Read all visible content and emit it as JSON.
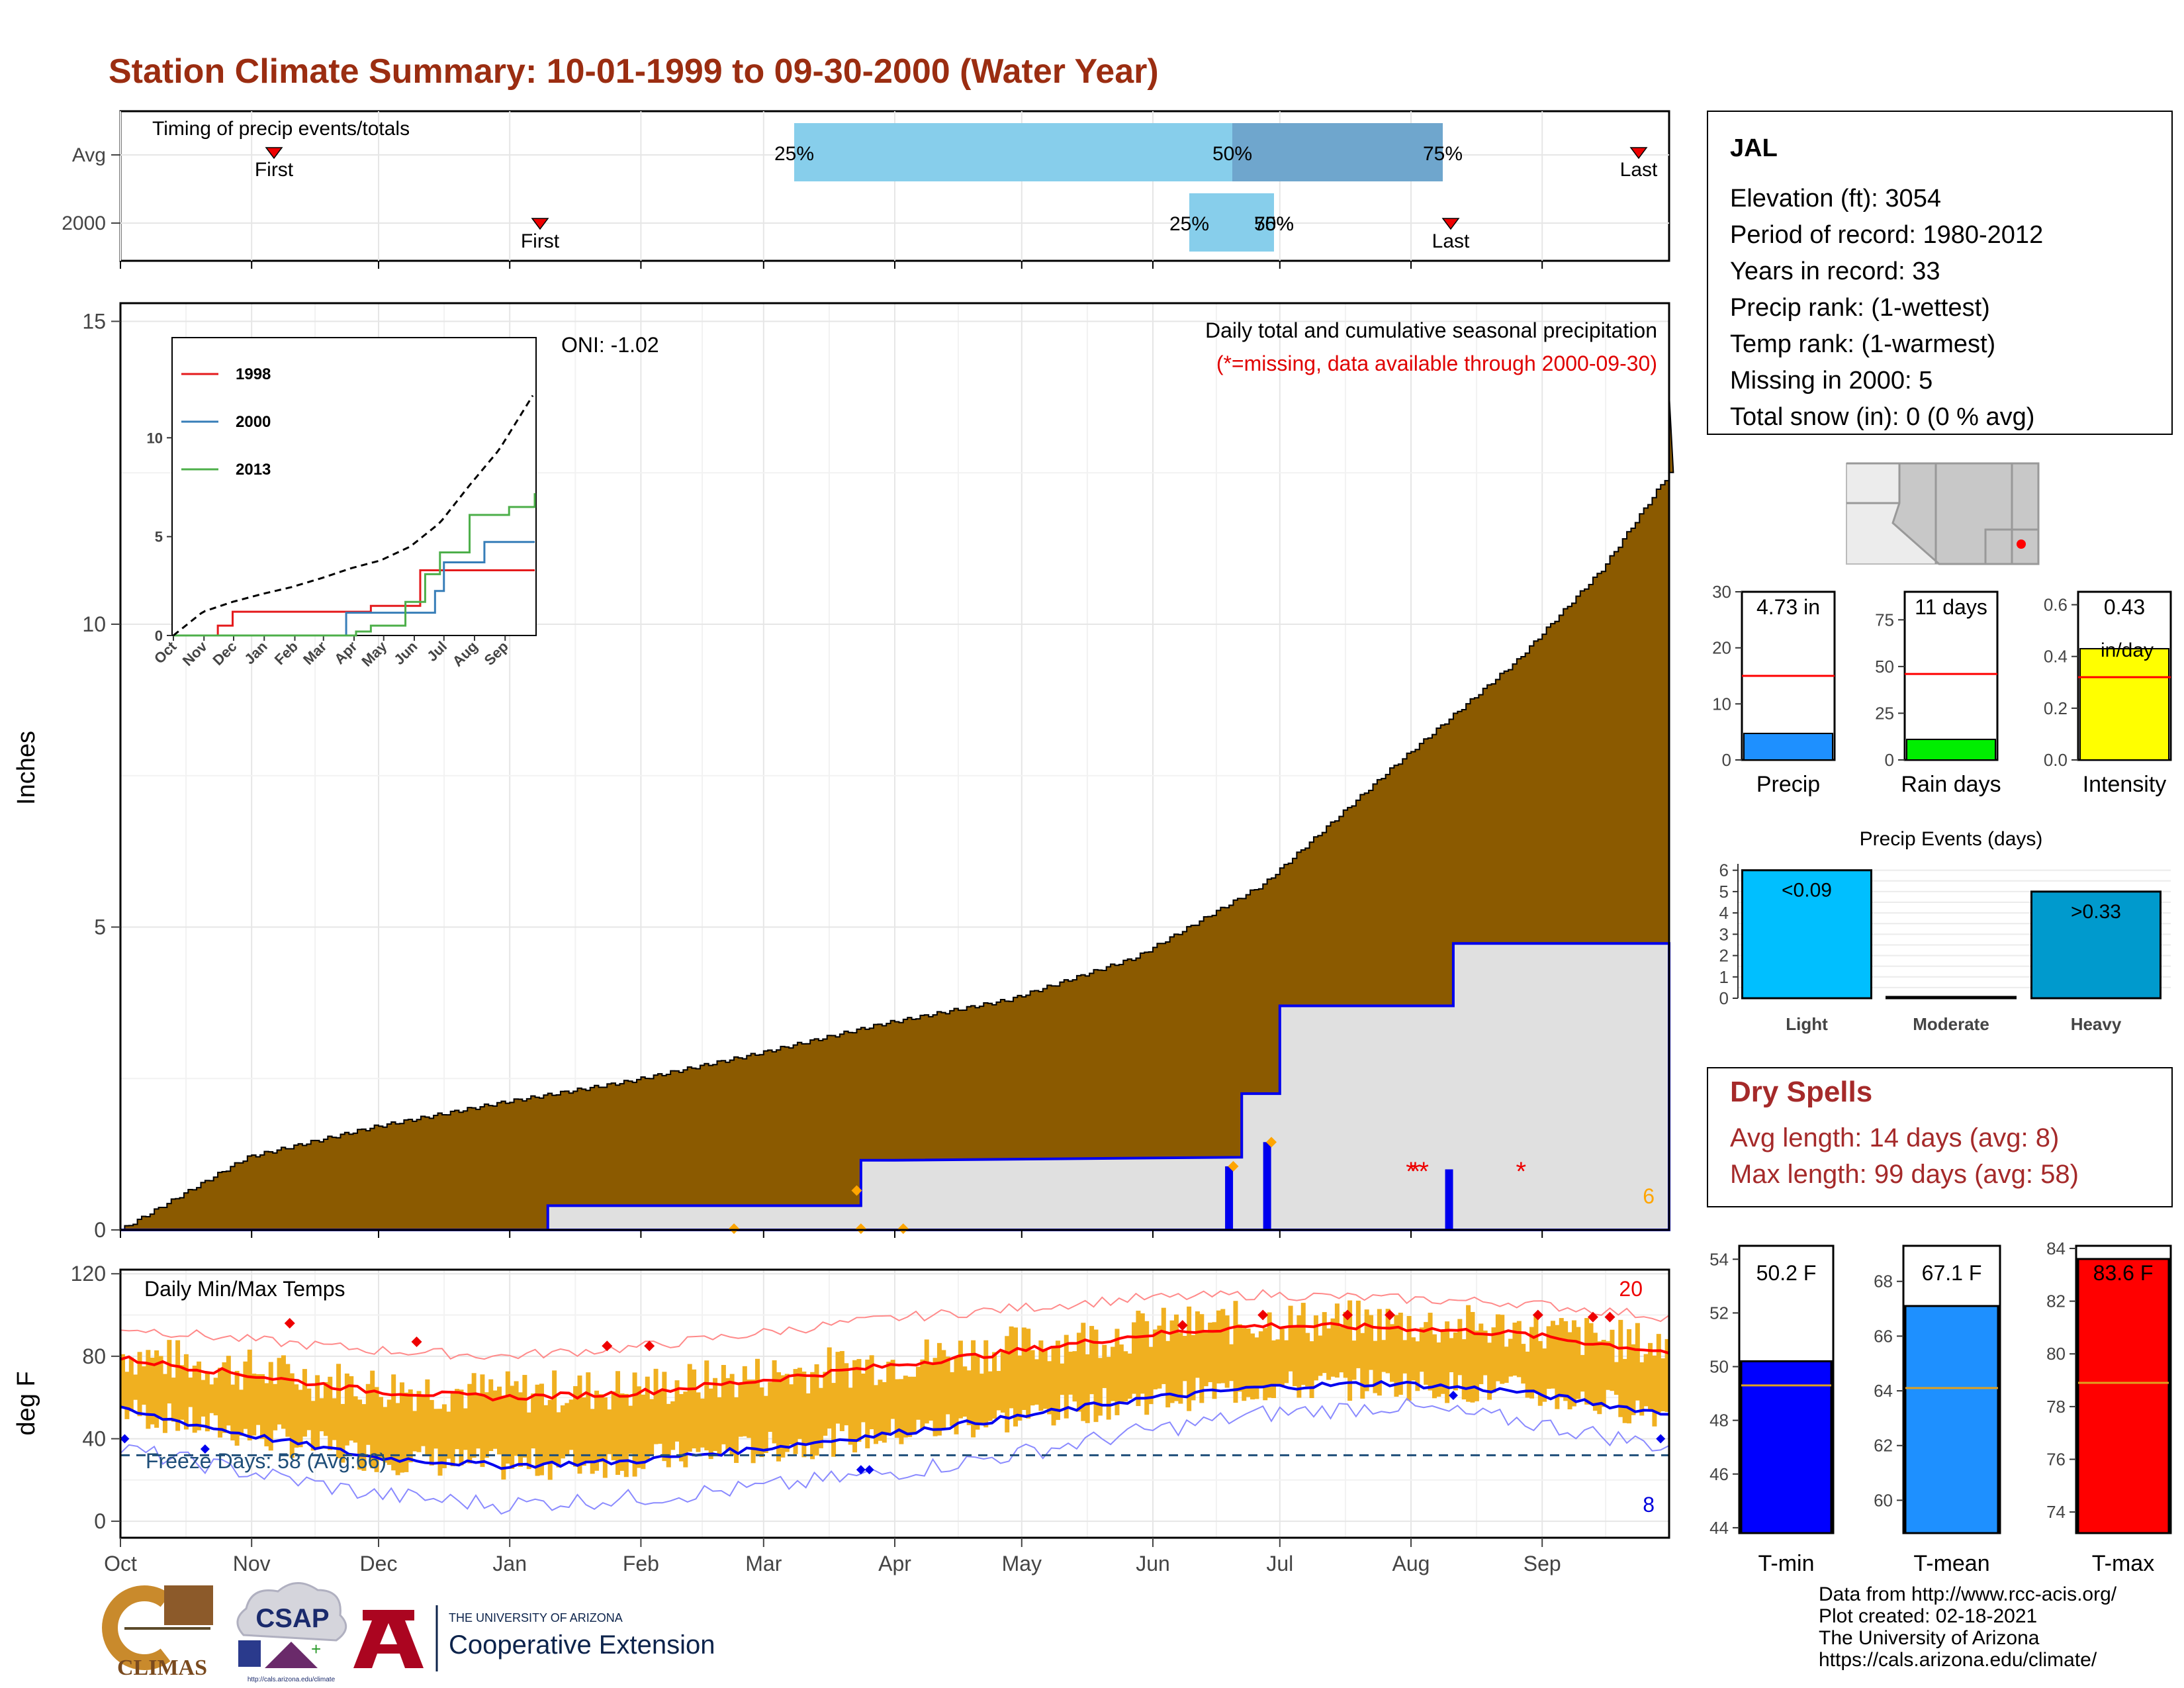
{
  "title": "Station Climate Summary: 10-01-1999 to 09-30-2000 (Water Year)",
  "timing_panel": {
    "label": "Timing of precip events/totals",
    "rows": [
      "Avg",
      "2000"
    ],
    "avg": {
      "first": "First",
      "last": "Last",
      "p25": "25%",
      "p50": "50%",
      "p75": "75%"
    },
    "y2000": {
      "first": "First",
      "last": "Last",
      "p25": "25%",
      "p50": "50%",
      "p75": "75%"
    }
  },
  "main_panel": {
    "ylabel": "Inches",
    "yticks": [
      "0",
      "5",
      "10",
      "15"
    ],
    "caption": "Daily total and cumulative seasonal precipitation",
    "missing_note": "(*=missing, data available through 2000-09-30)",
    "oni": "ONI: -1.02",
    "corner_count": "6",
    "missing_marker": "*"
  },
  "inset": {
    "legend": [
      "1998",
      "2000",
      "2013"
    ],
    "colors": {
      "1998": "#e41a1c",
      "2000": "#377eb8",
      "2013": "#4daf4a"
    },
    "yticks": [
      "0",
      "5",
      "10"
    ],
    "xticks": [
      "Oct",
      "Nov",
      "Dec",
      "Jan",
      "Feb",
      "Mar",
      "Apr",
      "May",
      "Jun",
      "Jul",
      "Aug",
      "Sep"
    ]
  },
  "temp_panel": {
    "ylabel": "deg F",
    "label": "Daily Min/Max Temps",
    "yticks": [
      "0",
      "40",
      "80",
      "120"
    ],
    "freeze": "Freeze Days: 58 (Avg:66)",
    "count_hot": "20",
    "count_cold": "8"
  },
  "months": [
    "Oct",
    "Nov",
    "Dec",
    "Jan",
    "Feb",
    "Mar",
    "Apr",
    "May",
    "Jun",
    "Jul",
    "Aug",
    "Sep"
  ],
  "station": {
    "name": "JAL",
    "lines": [
      "Elevation (ft): 3054",
      "Period of record: 1980-2012",
      "Years in record: 33",
      "Precip rank:  (1-wettest)",
      "Temp rank:  (1-warmest)",
      "Missing in 2000: 5",
      "Total snow (in): 0 (0 % avg)"
    ]
  },
  "bars_precip": {
    "panels": [
      {
        "label": "Precip",
        "value_text": "4.73 in",
        "value": 4.73,
        "avg": 15,
        "ymax": 30,
        "yticks": [
          "0",
          "10",
          "20",
          "30"
        ],
        "color": "#1e90ff"
      },
      {
        "label": "Rain days",
        "value_text": "11 days",
        "value": 11,
        "avg": 46,
        "ymax": 90,
        "yticks": [
          "0",
          "25",
          "50",
          "75"
        ],
        "color": "#00ee00"
      },
      {
        "label": "Intensity",
        "value_text": "0.43",
        "unit_text": "in/day",
        "value": 0.43,
        "avg": 0.32,
        "ymax": 0.65,
        "yticks": [
          "0.0",
          "0.2",
          "0.4",
          "0.6"
        ],
        "color": "#ffff00"
      }
    ]
  },
  "events": {
    "title": "Precip Events (days)",
    "yticks": [
      "0",
      "1",
      "2",
      "3",
      "4",
      "5",
      "6"
    ],
    "categories": [
      "Light",
      "Moderate",
      "Heavy"
    ],
    "values": [
      6,
      0,
      5
    ],
    "labels": [
      "<0.09",
      "",
      ">0.33"
    ],
    "colors": [
      "#00bfff",
      "#00bfff",
      "#009acd"
    ]
  },
  "dry_spells": {
    "title": "Dry Spells",
    "avg_line": "Avg length: 14 days (avg: 8)",
    "max_line": "Max length: 99 days (avg: 58)"
  },
  "bars_temp": {
    "panels": [
      {
        "label": "T-min",
        "value_text": "50.2 F",
        "value": 50.2,
        "avg": 49.3,
        "ymin": 43.8,
        "ymax": 54.5,
        "yticks": [
          "44",
          "46",
          "48",
          "50",
          "52",
          "54"
        ],
        "color": "#0000ff"
      },
      {
        "label": "T-mean",
        "value_text": "67.1 F",
        "value": 67.1,
        "avg": 64.1,
        "ymin": 58.8,
        "ymax": 69.3,
        "yticks": [
          "60",
          "62",
          "64",
          "66",
          "68"
        ],
        "color": "#1e90ff"
      },
      {
        "label": "T-max",
        "value_text": "83.6 F",
        "value": 83.6,
        "avg": 78.9,
        "ymin": 73.2,
        "ymax": 84.1,
        "yticks": [
          "74",
          "76",
          "78",
          "80",
          "82",
          "84"
        ],
        "color": "#ff0000"
      }
    ]
  },
  "logos": {
    "climas": "CLIMAS",
    "csap": "CSAP",
    "csap_url": "http://cals.arizona.edu/climate",
    "ua_small": "THE UNIVERSITY OF ARIZONA",
    "ua_big": "Cooperative Extension"
  },
  "footer": [
    "Data from http://www.rcc-acis.org/",
    "Plot created: 02-18-2021",
    "The University of Arizona",
    "https://cals.arizona.edu/climate/"
  ],
  "chart_data": [
    {
      "type": "line",
      "title": "Daily total and cumulative seasonal precipitation",
      "ylabel": "Inches",
      "ylim": [
        0,
        15.3
      ],
      "xlim_days": [
        0,
        366
      ],
      "series": [
        {
          "kind": "cumulative_avg",
          "x_day": [
            0,
            15,
            30,
            60,
            90,
            120,
            150,
            180,
            210,
            240,
            270,
            300,
            330,
            350,
            366
          ],
          "y": [
            0,
            0.6,
            1.2,
            1.7,
            2.1,
            2.45,
            2.9,
            3.4,
            3.8,
            4.5,
            5.7,
            7.6,
            9.4,
            10.9,
            12.5
          ]
        },
        {
          "kind": "cumulative_2000",
          "x_day": [
            0,
            101,
            101,
            175,
            175,
            183,
            265,
            265,
            274,
            274,
            315,
            315,
            366
          ],
          "y": [
            0,
            0,
            0.4,
            0.4,
            1.15,
            1.15,
            1.2,
            2.25,
            2.25,
            3.7,
            3.7,
            4.73,
            4.73
          ]
        }
      ],
      "daily_bars": [
        {
          "x_day": 262,
          "y": 1.05
        },
        {
          "x_day": 271,
          "y": 1.45
        },
        {
          "x_day": 314,
          "y": 1.0
        }
      ],
      "missing_days": [
        305,
        306,
        308,
        331
      ],
      "points": [
        {
          "x_day": 174,
          "y": 0.65
        },
        {
          "x_day": 263,
          "y": 1.05
        },
        {
          "x_day": 272,
          "y": 1.45
        },
        {
          "x_day": 145,
          "y": 0.02
        },
        {
          "x_day": 175,
          "y": 0.02
        },
        {
          "x_day": 185,
          "y": 0.02
        }
      ]
    },
    {
      "type": "line",
      "title": "",
      "legend": [
        "1998",
        "2000",
        "2013"
      ],
      "ylim": [
        0,
        15
      ],
      "series": [
        {
          "name": "1998",
          "x_day": [
            0,
            30,
            45,
            60,
            190,
            200,
            230,
            250,
            270,
            366
          ],
          "y": [
            0,
            0,
            0.5,
            1.2,
            1.2,
            1.5,
            1.5,
            3.3,
            3.3,
            3.3
          ]
        },
        {
          "name": "2000",
          "x_day": [
            0,
            101,
            175,
            183,
            265,
            274,
            315,
            366
          ],
          "y": [
            0,
            0,
            1.15,
            1.15,
            2.25,
            3.7,
            4.73,
            4.73
          ]
        },
        {
          "name": "2013",
          "x_day": [
            0,
            170,
            185,
            200,
            235,
            255,
            270,
            300,
            340,
            366
          ],
          "y": [
            0,
            0,
            0.2,
            0.5,
            1.7,
            3.1,
            4.2,
            6.1,
            6.5,
            7.2
          ]
        },
        {
          "kind": "average",
          "x_day": [
            0,
            30,
            60,
            90,
            120,
            150,
            180,
            210,
            240,
            270,
            300,
            330,
            366
          ],
          "y": [
            0,
            1.2,
            1.7,
            2.1,
            2.45,
            2.9,
            3.4,
            3.8,
            4.5,
            5.7,
            7.6,
            9.4,
            12.3
          ]
        }
      ]
    },
    {
      "type": "line",
      "title": "Daily Min/Max Temps",
      "ylabel": "deg F",
      "ylim": [
        -8,
        122
      ],
      "series": [
        {
          "name": "avg_max",
          "x_day": [
            0,
            30,
            60,
            90,
            120,
            150,
            180,
            210,
            240,
            270,
            300,
            330,
            366
          ],
          "y": [
            79,
            71,
            63,
            60,
            62,
            68,
            75,
            82,
            90,
            95,
            94,
            91,
            82
          ]
        },
        {
          "name": "avg_min",
          "x_day": [
            0,
            30,
            60,
            90,
            120,
            150,
            180,
            210,
            240,
            270,
            300,
            330,
            366
          ],
          "y": [
            54,
            42,
            31,
            27,
            29,
            35,
            42,
            50,
            59,
            65,
            67,
            63,
            52
          ]
        },
        {
          "name": "record_max",
          "x_day": [
            0,
            30,
            60,
            90,
            120,
            150,
            180,
            210,
            240,
            270,
            300,
            330,
            366
          ],
          "y": [
            94,
            88,
            83,
            80,
            84,
            91,
            98,
            103,
            108,
            110,
            108,
            106,
            99
          ]
        },
        {
          "name": "record_min",
          "x_day": [
            0,
            30,
            60,
            90,
            120,
            150,
            180,
            210,
            240,
            270,
            300,
            330,
            366
          ],
          "y": [
            35,
            24,
            13,
            8,
            11,
            16,
            23,
            32,
            43,
            52,
            56,
            49,
            36
          ]
        }
      ],
      "freeze_threshold": 32
    },
    {
      "type": "bar",
      "title": "Precip Events (days)",
      "categories": [
        "Light",
        "Moderate",
        "Heavy"
      ],
      "values": [
        6,
        0,
        5
      ],
      "ylim": [
        0,
        6.3
      ]
    }
  ]
}
